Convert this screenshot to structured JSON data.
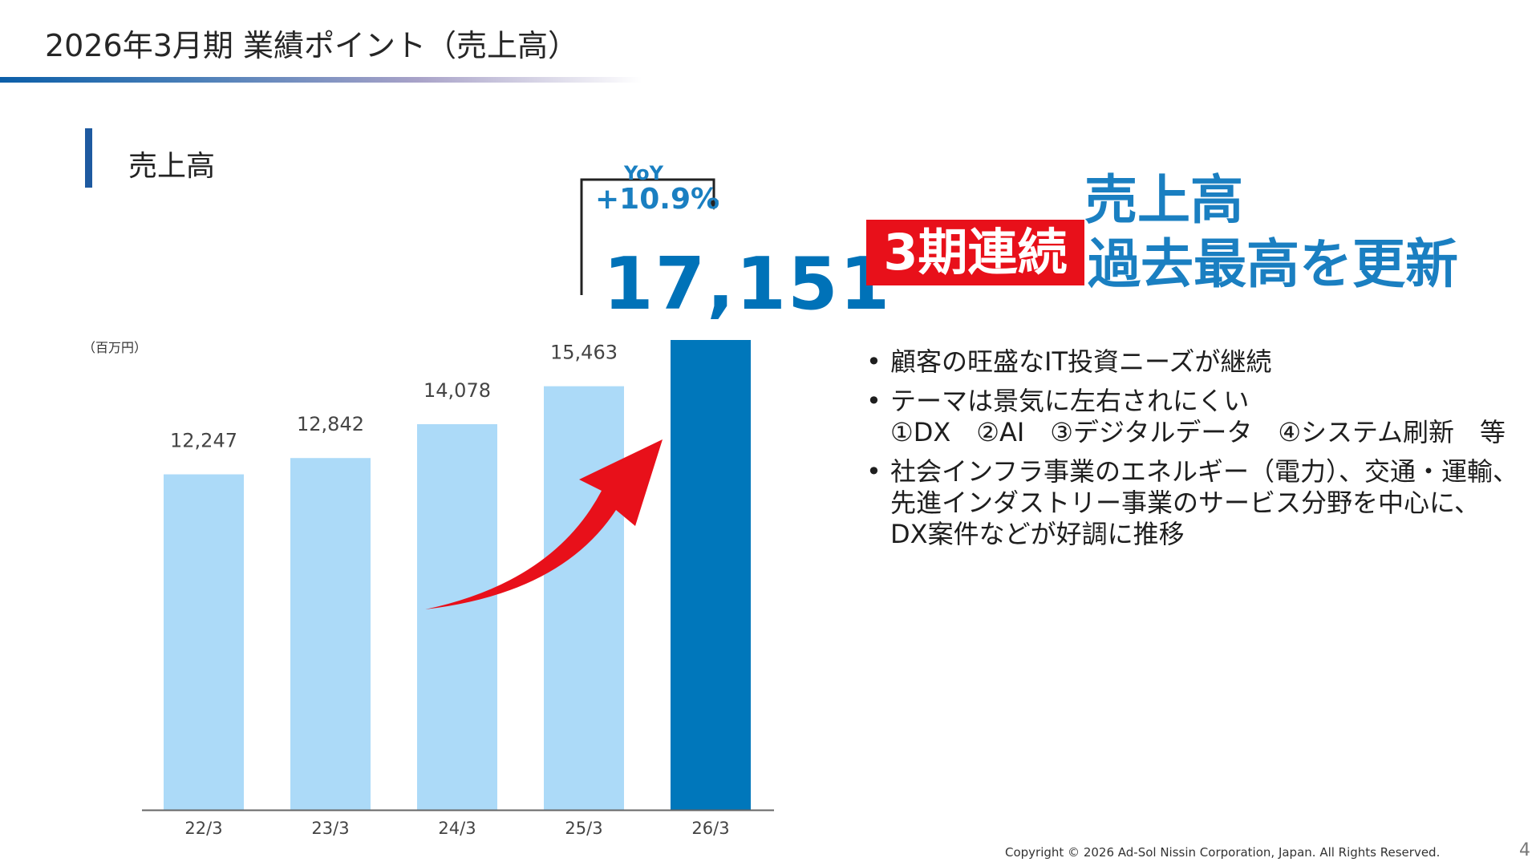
{
  "header": {
    "title": "2026年3月期 業績ポイント（売上高）"
  },
  "section": {
    "title": "売上高"
  },
  "chart_data": {
    "type": "bar",
    "unit_label": "（百万円）",
    "categories": [
      "22/3",
      "23/3",
      "24/3",
      "25/3",
      "26/3"
    ],
    "values": [
      12247,
      12842,
      14078,
      15463,
      17151
    ],
    "value_labels": [
      "12,247",
      "12,842",
      "14,078",
      "15,463",
      ""
    ],
    "highlight_index": 4,
    "colors": {
      "normal": "#acdaf8",
      "highlight": "#0077bb",
      "axis": "#666666",
      "arrow": "#e8101a"
    },
    "ylim": [
      0,
      17151
    ],
    "xlabel": "",
    "ylabel": "",
    "title": "",
    "grid": false,
    "annotations": {
      "yoy_label": "YoY",
      "yoy_value": "+10.9%",
      "highlight_value": "17,151"
    }
  },
  "headline": {
    "line1": "売上高",
    "badge": "3期連続",
    "line2": "過去最高を更新",
    "badge_color": "#e8101a",
    "text_color": "#1a7fc1"
  },
  "bullets": [
    {
      "lines": [
        "顧客の旺盛なIT投資ニーズが継続"
      ]
    },
    {
      "lines": [
        "テーマは景気に左右されにくい",
        "①DX　②AI　③デジタルデータ　④システム刷新　等"
      ]
    },
    {
      "lines": [
        "社会インフラ事業のエネルギー（電力）、交通・運輸、",
        "先進インダストリー事業のサービス分野を中心に、",
        "DX案件などが好調に推移"
      ]
    }
  ],
  "footer": {
    "copyright": "Copyright © 2026 Ad-Sol Nissin Corporation, Japan. All Rights Reserved.",
    "page_number": "4"
  }
}
